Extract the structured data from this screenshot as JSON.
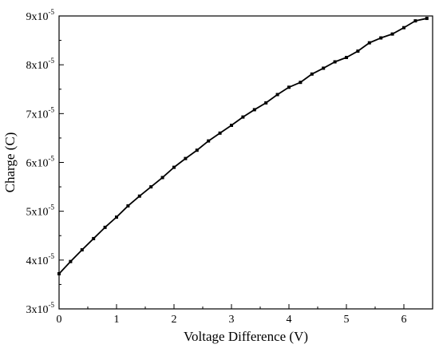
{
  "chart_data": {
    "type": "line",
    "title": "",
    "xlabel": "Voltage Difference (V)",
    "ylabel": "Charge (C)",
    "xlim": [
      0,
      6.5
    ],
    "ylim": [
      3e-05,
      9e-05
    ],
    "x_ticks": [
      0,
      1,
      2,
      3,
      4,
      5,
      6
    ],
    "x_tick_labels": [
      "0",
      "1",
      "2",
      "3",
      "4",
      "5",
      "6"
    ],
    "y_ticks": [
      3e-05,
      4e-05,
      5e-05,
      6e-05,
      7e-05,
      8e-05,
      9e-05
    ],
    "y_tick_labels": [
      {
        "mantissa": "3x10",
        "exponent": "-5"
      },
      {
        "mantissa": "4x10",
        "exponent": "-5"
      },
      {
        "mantissa": "5x10",
        "exponent": "-5"
      },
      {
        "mantissa": "6x10",
        "exponent": "-5"
      },
      {
        "mantissa": "7x10",
        "exponent": "-5"
      },
      {
        "mantissa": "8x10",
        "exponent": "-5"
      },
      {
        "mantissa": "9x10",
        "exponent": "-5"
      }
    ],
    "grid": false,
    "legend": "none",
    "line_color": "#000000",
    "marker": "square",
    "series": [
      {
        "x": [
          0,
          0.2,
          0.4,
          0.6,
          0.8,
          1.0,
          1.2,
          1.4,
          1.6,
          1.8,
          2.0,
          2.2,
          2.4,
          2.6,
          2.8,
          3.0,
          3.2,
          3.4,
          3.6,
          3.8,
          4.0,
          4.2,
          4.4,
          4.6,
          4.8,
          5.0,
          5.2,
          5.4,
          5.6,
          5.8,
          6.0,
          6.2,
          6.4
        ],
        "y": [
          3.72e-05,
          3.97e-05,
          4.21e-05,
          4.44e-05,
          4.67e-05,
          4.88e-05,
          5.11e-05,
          5.31e-05,
          5.5e-05,
          5.69e-05,
          5.9e-05,
          6.08e-05,
          6.25e-05,
          6.44e-05,
          6.6e-05,
          6.76e-05,
          6.93e-05,
          7.08e-05,
          7.22e-05,
          7.39e-05,
          7.54e-05,
          7.64e-05,
          7.81e-05,
          7.93e-05,
          8.06e-05,
          8.15e-05,
          8.28e-05,
          8.45e-05,
          8.55e-05,
          8.63e-05,
          8.76e-05,
          8.9e-05,
          8.95e-05
        ]
      }
    ]
  }
}
